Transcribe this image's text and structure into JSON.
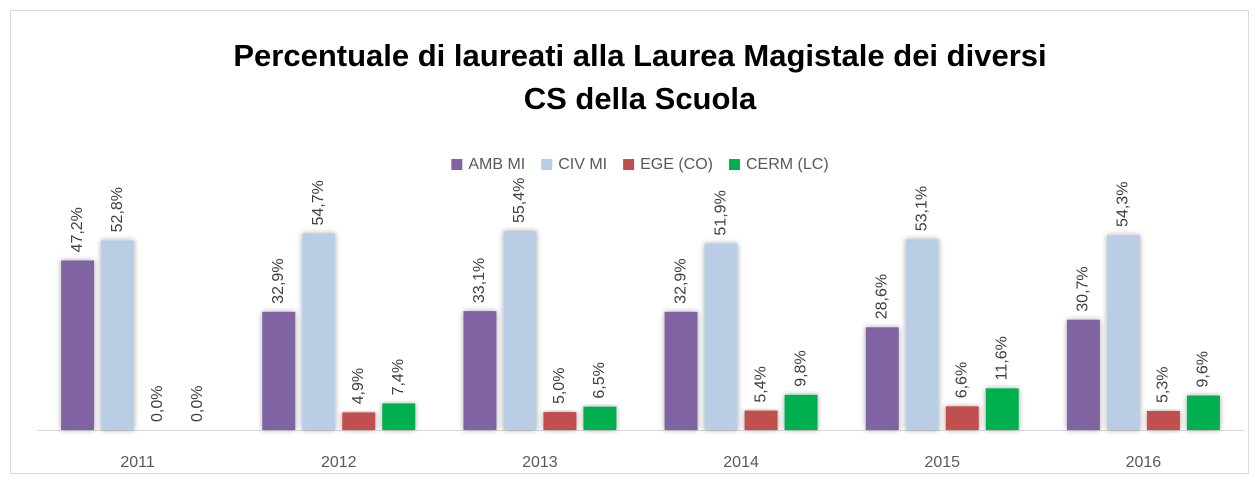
{
  "chart_data": {
    "type": "bar",
    "title": [
      "Percentuale di laureati alla Laurea Magistale dei diversi",
      "CS della Scuola"
    ],
    "categories": [
      "2011",
      "2012",
      "2013",
      "2014",
      "2015",
      "2016"
    ],
    "series": [
      {
        "name": "AMB MI",
        "color": "#8064a2",
        "values": [
          47.2,
          32.9,
          33.1,
          32.9,
          28.6,
          30.7
        ],
        "value_labels": [
          "47,2%",
          "32,9%",
          "33,1%",
          "32,9%",
          "28,6%",
          "30,7%"
        ]
      },
      {
        "name": "CIV MI",
        "color": "#b9cde5",
        "values": [
          52.8,
          54.7,
          55.4,
          51.9,
          53.1,
          54.3
        ],
        "value_labels": [
          "52,8%",
          "54,7%",
          "55,4%",
          "51,9%",
          "53,1%",
          "54,3%"
        ]
      },
      {
        "name": "EGE (CO)",
        "color": "#c0504d",
        "values": [
          0,
          4.9,
          5.0,
          5.4,
          6.6,
          5.3
        ],
        "value_labels": [
          "0,0%",
          "4,9%",
          "5,0%",
          "5,4%",
          "6,6%",
          "5,3%"
        ]
      },
      {
        "name": "CERM (LC)",
        "color": "#00b050",
        "values": [
          0,
          7.4,
          6.5,
          9.8,
          11.6,
          9.6
        ],
        "value_labels": [
          "0,0%",
          "7,4%",
          "6,5%",
          "9,8%",
          "11,6%",
          "9,6%"
        ]
      }
    ],
    "legend": "top"
  }
}
